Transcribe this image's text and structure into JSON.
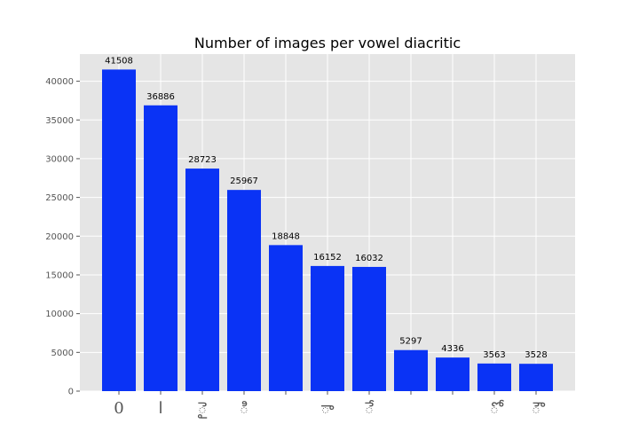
{
  "chart_data": {
    "type": "bar",
    "title": "Number of images per vowel diacritic",
    "xlabel": "",
    "ylabel": "",
    "categories": [
      "0",
      "ا",
      "ై",
      "ి",
      "",
      "ా",
      "ే",
      "",
      "",
      "ో",
      "ౌ"
    ],
    "values": [
      41508,
      36886,
      28723,
      25967,
      18848,
      16152,
      16032,
      5297,
      4336,
      3563,
      3528
    ],
    "data_labels": [
      "41508",
      "36886",
      "28723",
      "25967",
      "18848",
      "16152",
      "16032",
      "5297",
      "4336",
      "3563",
      "3528"
    ],
    "ylim": [
      0,
      43500
    ],
    "yticks": [
      0,
      5000,
      10000,
      15000,
      20000,
      25000,
      30000,
      35000,
      40000
    ],
    "ytick_labels": [
      "0",
      "5000",
      "10000",
      "15000",
      "20000",
      "25000",
      "30000",
      "35000",
      "40000"
    ],
    "grid": true,
    "bar_color": "#0a33f5",
    "background_color": "#e5e5e5",
    "grid_color": "#ffffff"
  }
}
